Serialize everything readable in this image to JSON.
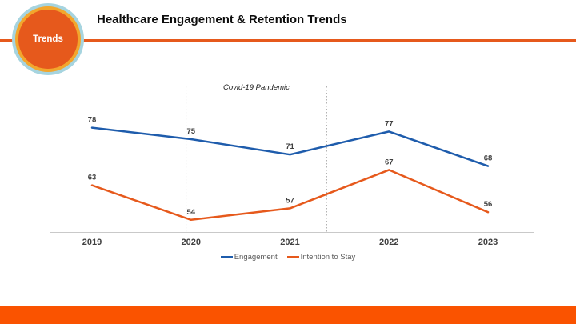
{
  "slide": {
    "badge_label": "Trends",
    "title": "Healthcare Engagement & Retention Trends"
  },
  "theme": {
    "accent_orange": "#E6591C",
    "footer_bar_orange": "#FA5300",
    "badge_ring_gold": "#F2A62D",
    "badge_ring_blue": "#A6D4DF",
    "axis_gray": "#C9C9C9",
    "data_label_gray": "#404040",
    "legend_text_gray": "#595959",
    "annotation_gray": "#9E9E9E"
  },
  "chart_data": {
    "type": "line",
    "title": "Healthcare Engagement & Retention Trends",
    "categories": [
      2019,
      2020,
      2021,
      2022,
      2023
    ],
    "series": [
      {
        "name": "Engagement",
        "color": "#1E5CAC",
        "values": [
          78,
          75,
          71,
          77,
          68
        ]
      },
      {
        "name": "Intention to Stay",
        "color": "#E6591C",
        "values": [
          63,
          54,
          57,
          67,
          56
        ]
      }
    ],
    "xlabel": "",
    "ylabel": "",
    "ylim": [
      50,
      85
    ],
    "grid": false,
    "data_labels": true,
    "legend_position": "bottom-center",
    "annotation": {
      "label": "Covid-19 Pandemic",
      "x_start": 2019.95,
      "x_end": 2021.37
    }
  }
}
